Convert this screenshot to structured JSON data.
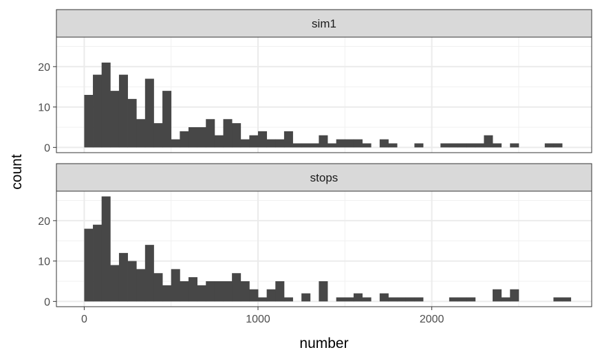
{
  "chart_data": {
    "type": "bar",
    "subtype": "faceted-histogram",
    "xlabel": "number",
    "ylabel": "count",
    "xlim": [
      -160,
      2920
    ],
    "x_ticks": [
      0,
      1000,
      2000
    ],
    "x_tick_labels": [
      "0",
      "1000",
      "2000"
    ],
    "bin_width": 50,
    "grid": true,
    "bar_color": "#474747",
    "panels": [
      {
        "name": "sim1",
        "ylim": [
          -1.3,
          27.3
        ],
        "y_ticks": [
          0,
          10,
          20
        ],
        "y_tick_labels": [
          "0",
          "10",
          "20"
        ],
        "bin_starts": [
          0,
          50,
          100,
          150,
          200,
          250,
          300,
          350,
          400,
          450,
          500,
          550,
          600,
          650,
          700,
          750,
          800,
          850,
          900,
          950,
          1000,
          1050,
          1100,
          1150,
          1200,
          1250,
          1300,
          1350,
          1400,
          1450,
          1500,
          1550,
          1600,
          1650,
          1700,
          1750,
          1800,
          1850,
          1900,
          1950,
          2000,
          2050,
          2100,
          2150,
          2200,
          2250,
          2300,
          2350,
          2400,
          2450,
          2500,
          2550,
          2600,
          2650,
          2700,
          2750
        ],
        "values": [
          13,
          18,
          21,
          14,
          18,
          12,
          7,
          17,
          6,
          14,
          2,
          4,
          5,
          5,
          7,
          3,
          7,
          6,
          2,
          3,
          4,
          2,
          2,
          4,
          1,
          1,
          1,
          3,
          1,
          2,
          2,
          2,
          1,
          0,
          2,
          1,
          0,
          0,
          1,
          0,
          0,
          1,
          1,
          1,
          1,
          1,
          3,
          1,
          0,
          1,
          0,
          0,
          0,
          1,
          1,
          0
        ]
      },
      {
        "name": "stops",
        "ylim": [
          -1.3,
          27.3
        ],
        "y_ticks": [
          0,
          10,
          20
        ],
        "y_tick_labels": [
          "0",
          "10",
          "20"
        ],
        "bin_starts": [
          0,
          50,
          100,
          150,
          200,
          250,
          300,
          350,
          400,
          450,
          500,
          550,
          600,
          650,
          700,
          750,
          800,
          850,
          900,
          950,
          1000,
          1050,
          1100,
          1150,
          1200,
          1250,
          1300,
          1350,
          1400,
          1450,
          1500,
          1550,
          1600,
          1650,
          1700,
          1750,
          1800,
          1850,
          1900,
          1950,
          2000,
          2050,
          2100,
          2150,
          2200,
          2250,
          2300,
          2350,
          2400,
          2450,
          2500,
          2550,
          2600,
          2650,
          2700,
          2750
        ],
        "values": [
          18,
          19,
          26,
          9,
          12,
          10,
          8,
          14,
          7,
          4,
          8,
          5,
          6,
          4,
          5,
          5,
          5,
          7,
          5,
          3,
          1,
          3,
          5,
          1,
          0,
          2,
          0,
          5,
          0,
          1,
          1,
          2,
          1,
          0,
          2,
          1,
          1,
          1,
          1,
          0,
          0,
          0,
          1,
          1,
          1,
          0,
          0,
          3,
          1,
          3,
          0,
          0,
          0,
          0,
          1,
          1
        ]
      }
    ]
  }
}
